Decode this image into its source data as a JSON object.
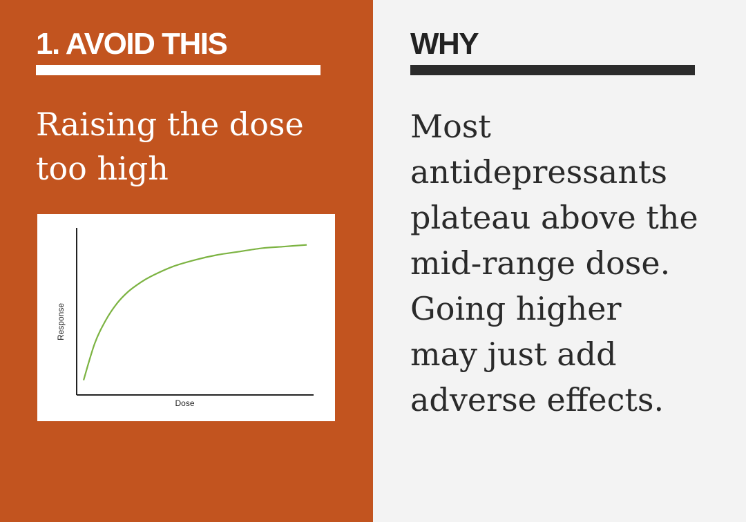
{
  "left": {
    "heading": "1. AVOID THIS",
    "subtitle": [
      "Raising the dose",
      "too high"
    ]
  },
  "right": {
    "heading": "WHY",
    "body_lines": [
      "Most",
      "antidepressants",
      "plateau above the",
      "mid-range dose.",
      "Going higher",
      "may just add",
      "adverse effects."
    ]
  },
  "colors": {
    "left_background": "#c2541f",
    "right_background": "#f3f3f3",
    "curve": "#7cb342"
  },
  "chart_data": {
    "type": "line",
    "xlabel": "Dose",
    "ylabel": "Response",
    "grid": false,
    "show_tick_labels": false,
    "xlim": [
      0,
      100
    ],
    "ylim": [
      0,
      100
    ],
    "series": [
      {
        "x": [
          0,
          5,
          10,
          15,
          20,
          25,
          30,
          40,
          50,
          60,
          70,
          80,
          90,
          100
        ],
        "values": [
          8,
          30,
          44,
          54,
          61,
          66,
          70,
          76,
          80,
          83,
          85,
          87,
          88,
          89
        ]
      }
    ]
  }
}
